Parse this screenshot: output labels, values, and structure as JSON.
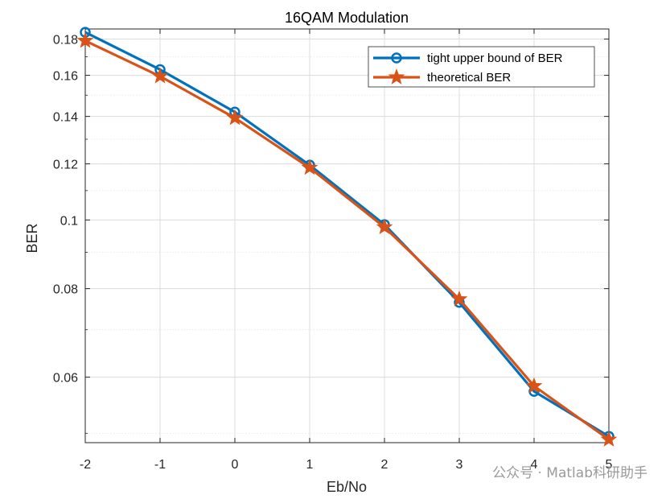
{
  "chart_data": {
    "type": "line",
    "title": "16QAM Modulation",
    "xlabel": "Eb/No",
    "ylabel": "BER",
    "xlim": [
      -2,
      5
    ],
    "ylim": [
      0.0485,
      0.186
    ],
    "yscale": "log",
    "grid": true,
    "minor_grid": true,
    "legend_position": "top-right",
    "x_ticks": [
      -2,
      -1,
      0,
      1,
      2,
      3,
      4,
      5
    ],
    "x_tick_labels": [
      "-2",
      "-1",
      "0",
      "1",
      "2",
      "3",
      "4",
      "5"
    ],
    "y_ticks": [
      0.06,
      0.08,
      0.1,
      0.12,
      0.14,
      0.16,
      0.18
    ],
    "y_tick_labels": [
      "0.06",
      "0.08",
      "0.1",
      "0.12",
      "0.14",
      "0.16",
      "0.18"
    ],
    "x": [
      -2,
      -1,
      0,
      1,
      2,
      3,
      4,
      5
    ],
    "series": [
      {
        "name": "tight upper bound of BER",
        "color": "#0072BD",
        "marker": "circle",
        "values": [
          0.184,
          0.163,
          0.142,
          0.1195,
          0.0985,
          0.0765,
          0.0573,
          0.0495
        ]
      },
      {
        "name": "theoretical BER",
        "color": "#D95319",
        "marker": "star",
        "values": [
          0.179,
          0.1595,
          0.1393,
          0.1185,
          0.0977,
          0.0773,
          0.0583,
          0.049
        ]
      }
    ]
  },
  "watermark": "公众号 · Matlab科研助手"
}
